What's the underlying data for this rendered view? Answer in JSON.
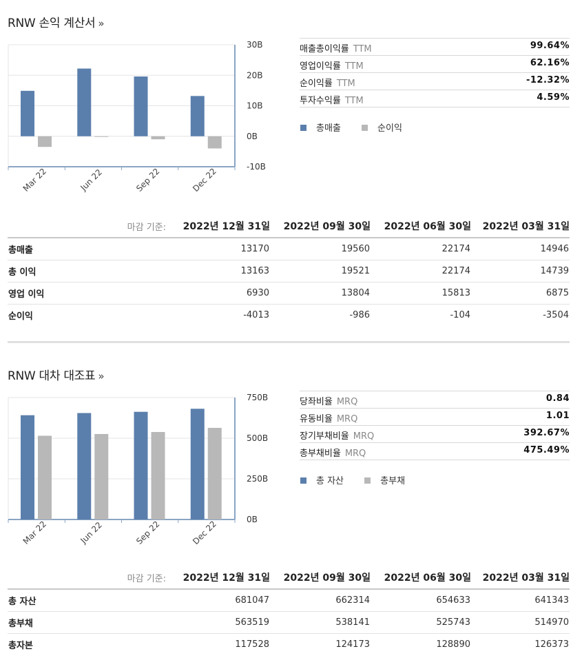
{
  "income": {
    "title": "RNW 손익 계산서",
    "title_suffix": "»",
    "ratios": [
      {
        "label": "매출총이익률",
        "suffix": "TTM",
        "value": "99.64%"
      },
      {
        "label": "영업이익률",
        "suffix": "TTM",
        "value": "62.16%"
      },
      {
        "label": "순이익률",
        "suffix": "TTM",
        "value": "-12.32%"
      },
      {
        "label": "투자수익률",
        "suffix": "TTM",
        "value": "4.59%"
      }
    ],
    "legend": [
      "총매출",
      "순이익"
    ],
    "table": {
      "caption": "마감 기준:",
      "headers": [
        "2022년 12월 31일",
        "2022년 09월 30일",
        "2022년 06월 30일",
        "2022년 03월 31일"
      ],
      "rows": [
        {
          "label": "총매출",
          "values": [
            "13170",
            "19560",
            "22174",
            "14946"
          ]
        },
        {
          "label": "총 이익",
          "values": [
            "13163",
            "19521",
            "22174",
            "14739"
          ]
        },
        {
          "label": "영업 이익",
          "values": [
            "6930",
            "13804",
            "15813",
            "6875"
          ]
        },
        {
          "label": "순이익",
          "values": [
            "-4013",
            "-986",
            "-104",
            "-3504"
          ]
        }
      ]
    }
  },
  "balance": {
    "title": "RNW 대차 대조표",
    "title_suffix": "»",
    "ratios": [
      {
        "label": "당좌비율",
        "suffix": "MRQ",
        "value": "0.84"
      },
      {
        "label": "유동비율",
        "suffix": "MRQ",
        "value": "1.01"
      },
      {
        "label": "장기부채비율",
        "suffix": "MRQ",
        "value": "392.67%"
      },
      {
        "label": "총부채비율",
        "suffix": "MRQ",
        "value": "475.49%"
      }
    ],
    "legend": [
      "총 자산",
      "총부채"
    ],
    "table": {
      "caption": "마감 기준:",
      "headers": [
        "2022년 12월 31일",
        "2022년 09월 30일",
        "2022년 06월 30일",
        "2022년 03월 31일"
      ],
      "rows": [
        {
          "label": "총 자산",
          "values": [
            "681047",
            "662314",
            "654633",
            "641343"
          ]
        },
        {
          "label": "총부채",
          "values": [
            "563519",
            "538141",
            "525743",
            "514970"
          ]
        },
        {
          "label": "총자본",
          "values": [
            "117528",
            "124173",
            "128890",
            "126373"
          ]
        }
      ]
    }
  },
  "colors": {
    "series1": "#5b7fac",
    "series2": "#b8b8b8",
    "axis": "#8aa4c4",
    "grid": "#e4e4e4"
  },
  "chart_data": [
    {
      "type": "bar",
      "categories": [
        "Mar 22",
        "Jun 22",
        "Sep 22",
        "Dec 22"
      ],
      "series": [
        {
          "name": "총매출",
          "values": [
            14.9,
            22.2,
            19.6,
            13.2
          ]
        },
        {
          "name": "순이익",
          "values": [
            -3.5,
            -0.1,
            -1.0,
            -4.0
          ]
        }
      ],
      "yticks": [
        "30B",
        "20B",
        "10B",
        "0B",
        "-10B"
      ],
      "ylim": [
        -10,
        30
      ],
      "grid": true,
      "legend": "right"
    },
    {
      "type": "bar",
      "categories": [
        "Mar 22",
        "Jun 22",
        "Sep 22",
        "Dec 22"
      ],
      "series": [
        {
          "name": "총 자산",
          "values": [
            641.3,
            654.6,
            662.3,
            681.0
          ]
        },
        {
          "name": "총부채",
          "values": [
            515.0,
            525.7,
            538.1,
            563.5
          ]
        }
      ],
      "yticks": [
        "750B",
        "500B",
        "250B",
        "0B"
      ],
      "ylim": [
        0,
        750
      ],
      "grid": true,
      "legend": "right"
    }
  ]
}
